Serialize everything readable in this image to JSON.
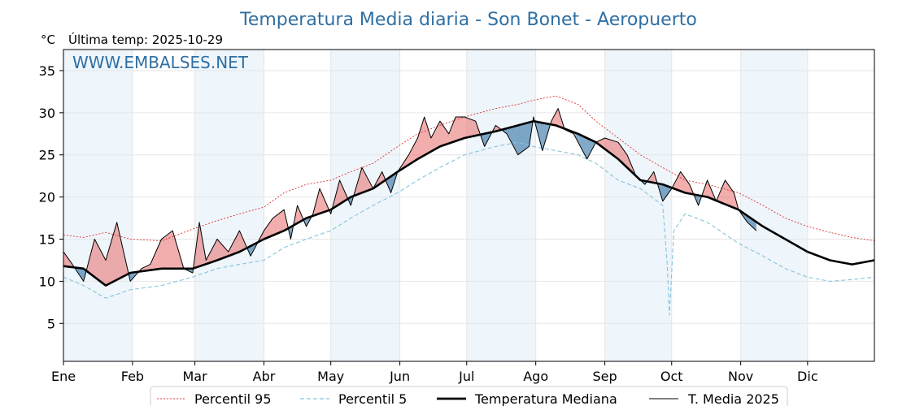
{
  "chart_data": {
    "type": "line",
    "title": "Temperatura Media diaria - Son Bonet - Aeropuerto",
    "unit_label": "°C",
    "last_temp_label": "Última temp: 2025-10-29",
    "watermark": "WWW.EMBALSES.NET",
    "ylim": [
      0.5,
      37.5
    ],
    "yticks": [
      5,
      10,
      15,
      20,
      25,
      30,
      35
    ],
    "xlim": [
      1,
      365
    ],
    "months": [
      "Ene",
      "Feb",
      "Mar",
      "Abr",
      "May",
      "Jun",
      "Jul",
      "Ago",
      "Sep",
      "Oct",
      "Nov",
      "Dic"
    ],
    "month_start_days": [
      1,
      32,
      60,
      91,
      121,
      152,
      182,
      213,
      244,
      274,
      305,
      335
    ],
    "grid": true,
    "legend_position": "bottom",
    "colors": {
      "title": "#2f6fa3",
      "p95": "#e03030",
      "p5": "#88c4dc",
      "median": "#000000",
      "mean2025": "#000000",
      "above_fill": "#e86a6a",
      "below_fill": "#2f6fa3",
      "band_fill": "#eef5fb"
    },
    "series": [
      {
        "name": "Percentil 95",
        "style": "dotted",
        "x": [
          1,
          10,
          20,
          31,
          45,
          59,
          70,
          80,
          91,
          100,
          110,
          121,
          130,
          140,
          151,
          160,
          170,
          181,
          195,
          205,
          212,
          222,
          232,
          240,
          250,
          260,
          270,
          280,
          290,
          304,
          315,
          325,
          335,
          345,
          355,
          365
        ],
        "values": [
          15.5,
          15.2,
          15.8,
          15.0,
          14.8,
          16.2,
          17.2,
          18.0,
          18.8,
          20.5,
          21.5,
          22.0,
          23.0,
          24.0,
          26.0,
          27.5,
          28.5,
          29.5,
          30.5,
          31.0,
          31.5,
          32.0,
          31.0,
          29.0,
          27.0,
          25.0,
          23.5,
          22.0,
          21.5,
          20.5,
          19.0,
          17.5,
          16.5,
          15.8,
          15.2,
          14.8
        ]
      },
      {
        "name": "Percentil 5",
        "style": "dashed",
        "x": [
          1,
          10,
          20,
          31,
          45,
          59,
          70,
          80,
          91,
          100,
          110,
          121,
          130,
          140,
          151,
          160,
          170,
          181,
          195,
          205,
          212,
          222,
          232,
          240,
          250,
          260,
          265,
          270,
          272,
          273,
          275,
          280,
          290,
          304,
          315,
          325,
          335,
          345,
          355,
          365
        ],
        "values": [
          10.5,
          9.5,
          8.0,
          9.0,
          9.5,
          10.5,
          11.5,
          12.0,
          12.5,
          14.0,
          15.0,
          16.0,
          17.5,
          19.0,
          20.5,
          22.0,
          23.5,
          25.0,
          26.0,
          26.5,
          26.0,
          25.5,
          25.0,
          24.0,
          22.0,
          21.0,
          20.0,
          19.0,
          12.0,
          6.0,
          16.0,
          18.0,
          17.0,
          14.5,
          13.0,
          11.5,
          10.5,
          10.0,
          10.2,
          10.5
        ]
      },
      {
        "name": "Temperatura Mediana",
        "style": "solid-thick",
        "x": [
          1,
          10,
          20,
          31,
          45,
          59,
          70,
          80,
          91,
          100,
          110,
          121,
          130,
          140,
          151,
          160,
          170,
          181,
          195,
          205,
          212,
          222,
          232,
          240,
          250,
          260,
          270,
          280,
          290,
          304,
          315,
          325,
          335,
          345,
          355,
          365
        ],
        "values": [
          11.8,
          11.5,
          9.5,
          11.0,
          11.5,
          11.5,
          12.5,
          13.5,
          15.0,
          16.0,
          17.5,
          18.5,
          20.0,
          21.0,
          23.0,
          24.5,
          26.0,
          27.0,
          27.8,
          28.5,
          29.0,
          28.5,
          27.5,
          26.5,
          24.5,
          22.0,
          21.5,
          20.5,
          20.0,
          18.5,
          16.5,
          15.0,
          13.5,
          12.5,
          12.0,
          12.5
        ]
      },
      {
        "name": "T. Media 2025",
        "style": "solid-thin",
        "x": [
          1,
          5,
          10,
          15,
          20,
          25,
          31,
          36,
          40,
          45,
          50,
          55,
          59,
          62,
          65,
          70,
          75,
          80,
          85,
          91,
          95,
          100,
          103,
          106,
          110,
          113,
          116,
          121,
          125,
          130,
          135,
          140,
          144,
          148,
          151,
          156,
          160,
          163,
          166,
          170,
          174,
          177,
          181,
          186,
          190,
          195,
          200,
          205,
          210,
          212,
          216,
          220,
          223,
          226,
          230,
          236,
          240,
          244,
          250,
          254,
          258,
          262,
          266,
          270,
          274,
          278,
          282,
          286,
          290,
          294,
          298,
          302,
          304,
          308,
          312
        ],
        "values": [
          13.5,
          12.0,
          10.0,
          15.0,
          12.5,
          17.0,
          10.0,
          11.5,
          12.0,
          15.0,
          16.0,
          11.5,
          11.0,
          17.0,
          12.5,
          15.0,
          13.5,
          16.0,
          13.0,
          16.0,
          17.5,
          18.5,
          15.0,
          19.0,
          16.5,
          18.0,
          21.0,
          18.0,
          22.0,
          19.0,
          23.5,
          21.0,
          23.0,
          20.5,
          23.0,
          25.0,
          27.0,
          29.5,
          27.0,
          29.0,
          27.5,
          29.5,
          29.5,
          29.0,
          26.0,
          28.5,
          27.5,
          25.0,
          26.0,
          29.5,
          25.5,
          29.0,
          30.5,
          28.0,
          27.5,
          24.5,
          26.5,
          27.0,
          26.5,
          25.0,
          22.5,
          21.5,
          23.0,
          19.5,
          21.0,
          23.0,
          21.5,
          19.0,
          22.0,
          19.5,
          22.0,
          20.5,
          18.5,
          17.0,
          16.0
        ]
      }
    ]
  },
  "legend": {
    "items": [
      "Percentil 95",
      "Percentil 5",
      "Temperatura Mediana",
      "T. Media 2025"
    ]
  }
}
